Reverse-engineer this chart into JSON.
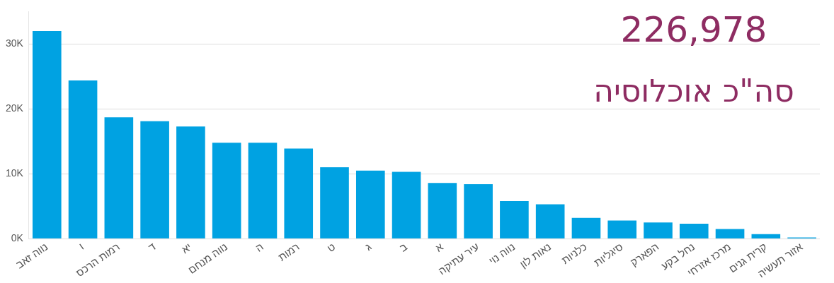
{
  "chart_data": {
    "type": "bar",
    "title": "226,978",
    "subtitle": "סה\"כ אוכלוסיה",
    "categories": [
      "נווה זאב",
      "ו",
      "רמות הרכס",
      "ד",
      "יא",
      "נווה מנחם",
      "ה",
      "רמות",
      "ט",
      "ג",
      "ב",
      "א",
      "עיר עתיקה",
      "נווה נוי",
      "נאות לון",
      "כלניות",
      "סיגליות",
      "הפארק",
      "נחל בקע",
      "מרכז אזרחי",
      "קרית גנים",
      "אזור תעשיה"
    ],
    "values": [
      32000,
      24400,
      18700,
      18100,
      17300,
      14800,
      14800,
      13900,
      11000,
      10500,
      10300,
      8600,
      8400,
      5800,
      5300,
      3200,
      2800,
      2500,
      2300,
      1500,
      700,
      200
    ],
    "color": "#00a2e2",
    "yticks": [
      {
        "value": 0,
        "label": "0K"
      },
      {
        "value": 10000,
        "label": "10K"
      },
      {
        "value": 20000,
        "label": "20K"
      },
      {
        "value": 30000,
        "label": "30K"
      }
    ],
    "ylim": [
      0,
      35000
    ],
    "grid": "y",
    "legend": false
  }
}
